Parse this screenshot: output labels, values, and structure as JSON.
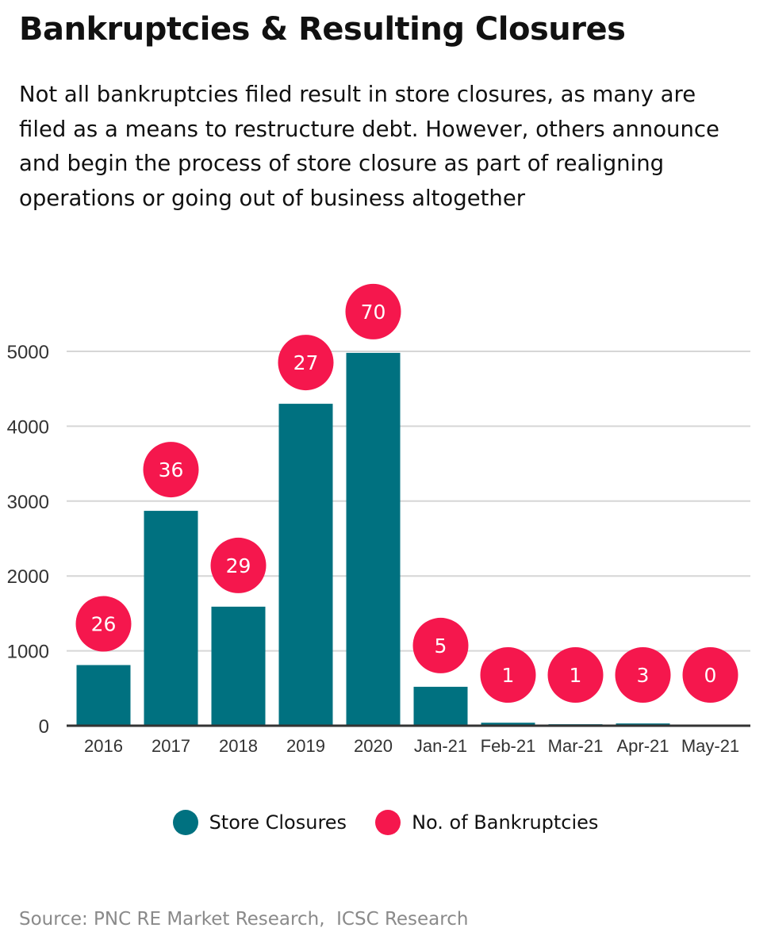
{
  "title": "Bankruptcies & Resulting Closures",
  "subtitle": "Not all bankruptcies filed result in store closures, as many are filed as a means to restructure debt. However, others announce and begin the process of store closure as part of realigning operations or going out of business altogether",
  "source": "Source: PNC RE Market Research,  ICSC Research",
  "legend": {
    "store_closures": "Store Closures",
    "bankruptcies": "No. of Bankruptcies"
  },
  "colors": {
    "store_closures": "#007180",
    "bankruptcies": "#f5174d",
    "grid": "#d6d6d6",
    "axis": "#333333"
  },
  "chart_data": {
    "type": "bar",
    "categories": [
      "2016",
      "2017",
      "2018",
      "2019",
      "2020",
      "Jan-21",
      "Feb-21",
      "Mar-21",
      "Apr-21",
      "May-21"
    ],
    "series": [
      {
        "name": "Store Closures",
        "values": [
          810,
          2870,
          1590,
          4300,
          4980,
          520,
          40,
          20,
          30,
          0
        ]
      },
      {
        "name": "No. of Bankruptcies",
        "values": [
          26,
          36,
          29,
          27,
          70,
          5,
          1,
          1,
          3,
          0
        ]
      }
    ],
    "yticks": [
      0,
      1000,
      2000,
      3000,
      4000,
      5000
    ],
    "ylim": [
      0,
      5000
    ],
    "grid": true,
    "legend_position": "bottom"
  }
}
